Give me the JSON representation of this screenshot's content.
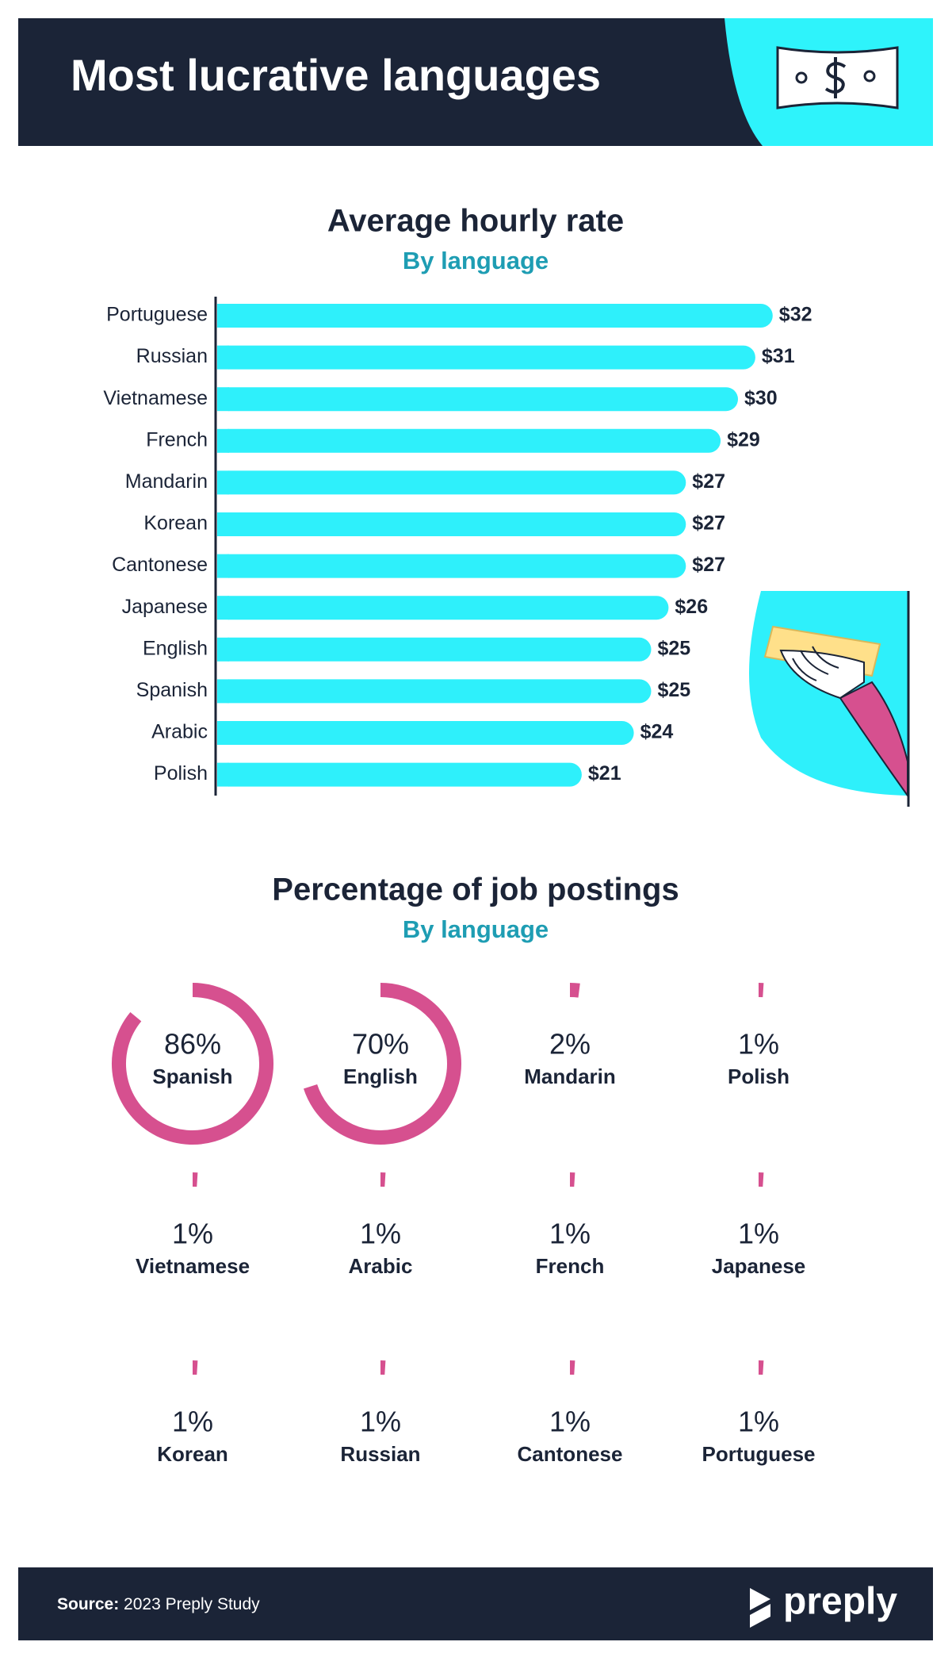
{
  "header": {
    "title": "Most lucrative languages"
  },
  "chart_data": [
    {
      "type": "bar",
      "orientation": "horizontal",
      "title": "Average hourly rate",
      "subtitle": "By language",
      "categories": [
        "Portuguese",
        "Russian",
        "Vietnamese",
        "French",
        "Mandarin",
        "Korean",
        "Cantonese",
        "Japanese",
        "English",
        "Spanish",
        "Arabic",
        "Polish"
      ],
      "values": [
        32,
        31,
        30,
        29,
        27,
        27,
        27,
        26,
        25,
        25,
        24,
        21
      ],
      "value_labels": [
        "$32",
        "$31",
        "$30",
        "$29",
        "$27",
        "$27",
        "$27",
        "$26",
        "$25",
        "$25",
        "$24",
        "$21"
      ],
      "color": "#2ef0fb"
    },
    {
      "type": "donut",
      "title": "Percentage of job postings",
      "subtitle": "By language",
      "categories": [
        "Spanish",
        "English",
        "Mandarin",
        "Polish",
        "Vietnamese",
        "Arabic",
        "French",
        "Japanese",
        "Korean",
        "Russian",
        "Cantonese",
        "Portuguese"
      ],
      "values": [
        86,
        70,
        2,
        1,
        1,
        1,
        1,
        1,
        1,
        1,
        1,
        1
      ],
      "value_labels": [
        "86%",
        "70%",
        "2%",
        "1%",
        "1%",
        "1%",
        "1%",
        "1%",
        "1%",
        "1%",
        "1%",
        "1%"
      ],
      "color": "#d6508f"
    }
  ],
  "footer": {
    "source_label": "Source:",
    "source": "2023 Preply Study",
    "logo": "preply"
  }
}
